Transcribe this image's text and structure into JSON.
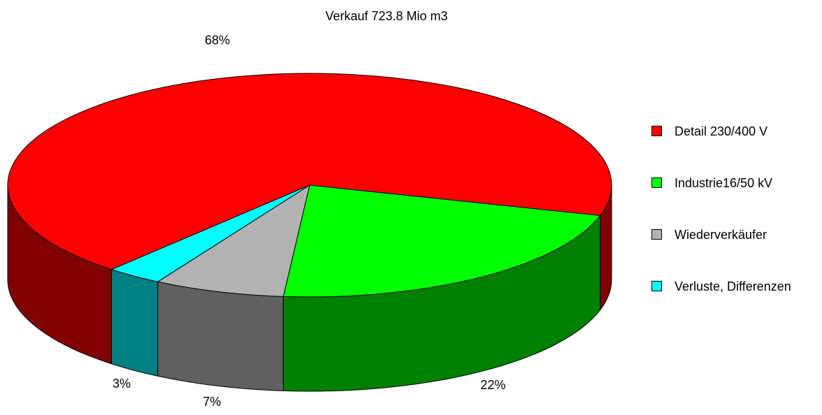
{
  "chart_data": {
    "type": "pie3d",
    "title": "Verkauf  723.8 Mio m3",
    "categories": [
      "Detail 230/400 V",
      "Industrie16/50 kV",
      "Wiederverkäufer",
      "Verluste, Differenzen"
    ],
    "values": [
      68,
      22,
      7,
      3
    ],
    "value_labels": [
      "68%",
      "22%",
      "7%",
      "3%"
    ],
    "colors": [
      "#ff0000",
      "#00ff00",
      "#b2b2b2",
      "#00ffff"
    ],
    "side_colors": [
      "#800000",
      "#008000",
      "#606060",
      "#008080"
    ],
    "legend": "right"
  }
}
